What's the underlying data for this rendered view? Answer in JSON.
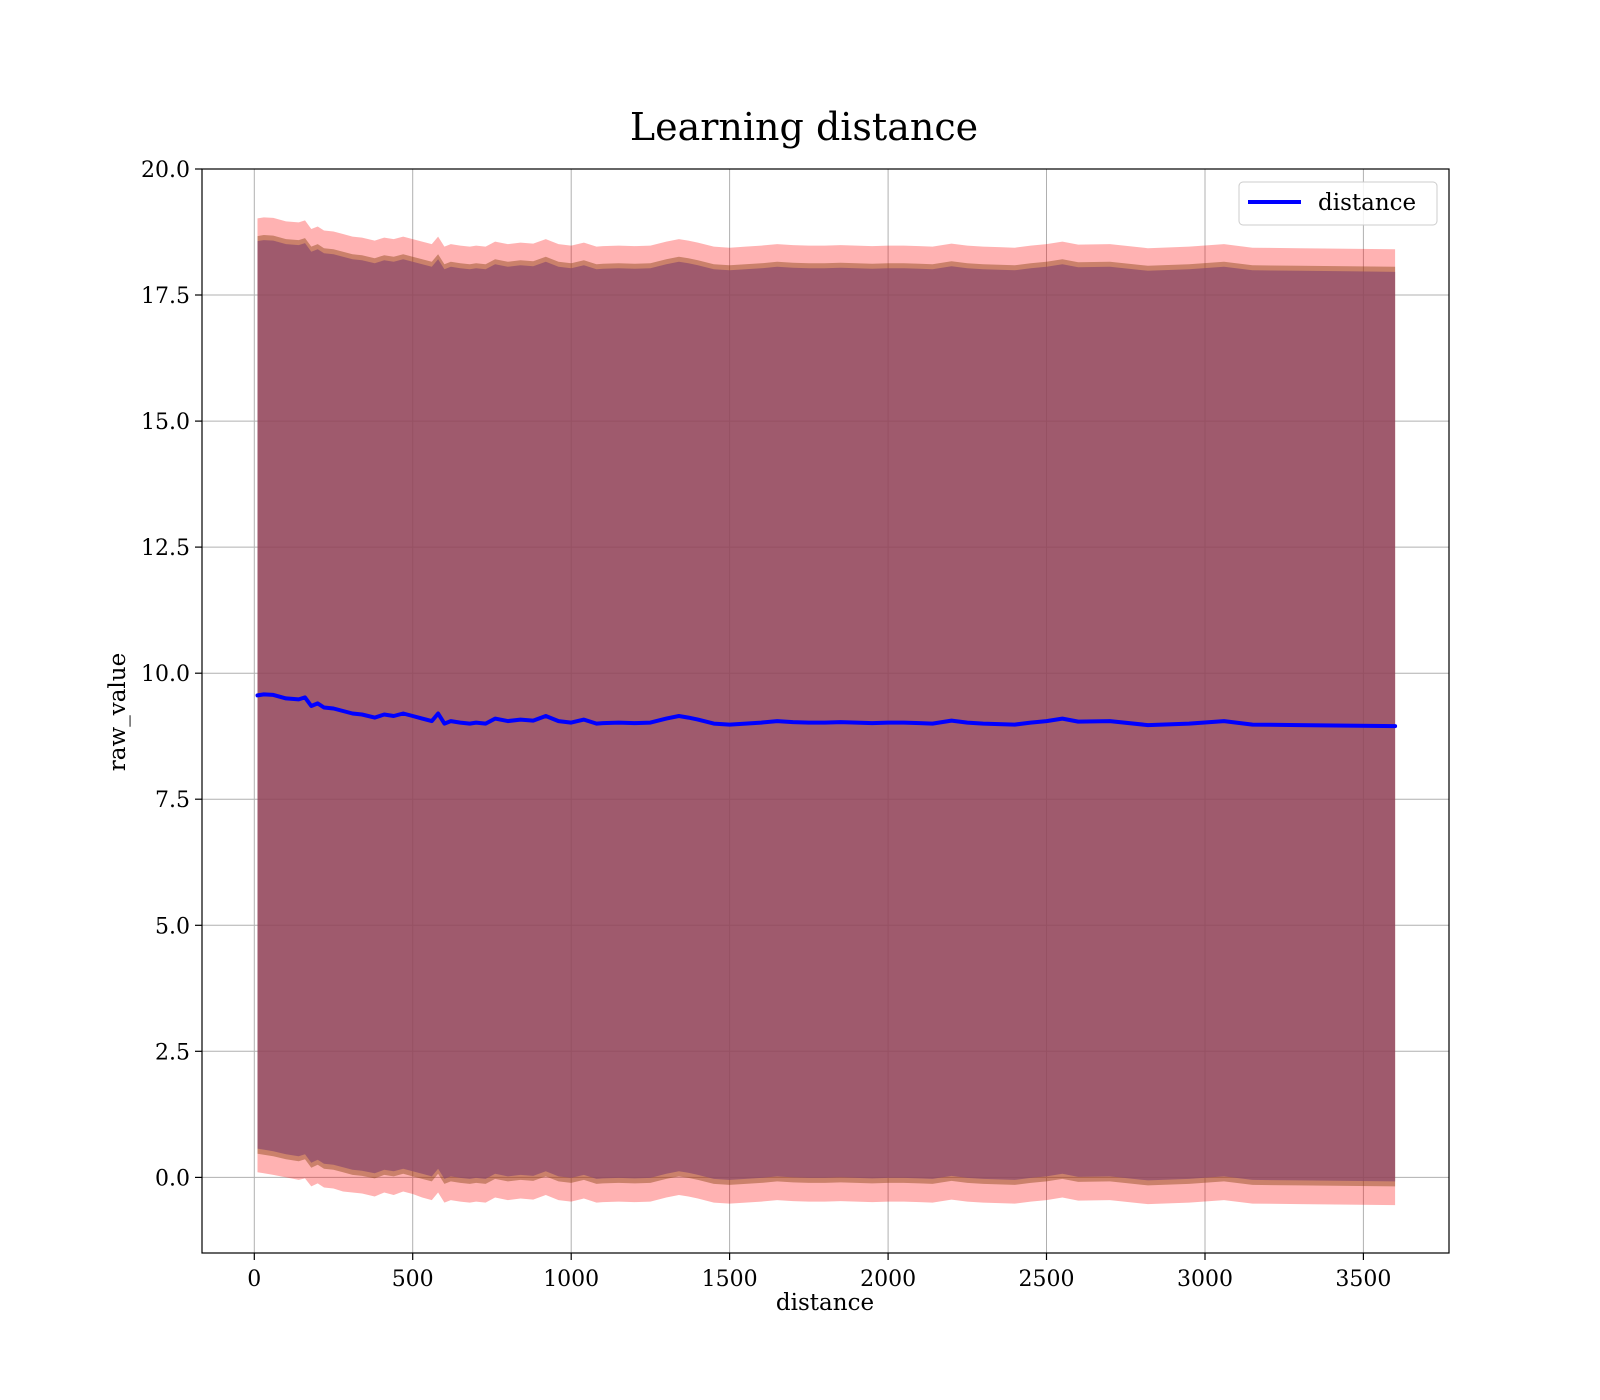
{
  "chart_data": {
    "type": "line",
    "title": "Learning distance",
    "xlabel": "distance",
    "ylabel": "raw_value",
    "xlim": [
      -165,
      3770
    ],
    "ylim": [
      -1.5,
      20
    ],
    "grid": true,
    "legend_position": "top-right",
    "x_ticks": [
      0,
      500,
      1000,
      1500,
      2000,
      2500,
      3000,
      3500
    ],
    "x_tick_labels": [
      "0",
      "500",
      "1000",
      "1500",
      "2000",
      "2500",
      "3000",
      "3500"
    ],
    "y_ticks": [
      0,
      2.5,
      5,
      7.5,
      10,
      12.5,
      15,
      17.5,
      20
    ],
    "y_tick_labels": [
      "0.0",
      "2.5",
      "5.0",
      "7.5",
      "10.0",
      "12.5",
      "15.0",
      "17.5",
      "20.0"
    ],
    "series": [
      {
        "name": "distance",
        "color": "#0000ff",
        "x": [
          10,
          30,
          60,
          100,
          140,
          160,
          180,
          200,
          220,
          250,
          280,
          310,
          340,
          380,
          410,
          440,
          470,
          500,
          530,
          560,
          580,
          600,
          620,
          650,
          680,
          700,
          730,
          760,
          800,
          840,
          880,
          920,
          960,
          1000,
          1040,
          1080,
          1100,
          1150,
          1200,
          1250,
          1300,
          1340,
          1370,
          1400,
          1450,
          1500,
          1550,
          1600,
          1650,
          1700,
          1750,
          1800,
          1850,
          1900,
          1950,
          2000,
          2050,
          2100,
          2140,
          2200,
          2250,
          2300,
          2350,
          2400,
          2450,
          2500,
          2550,
          2600,
          2700,
          2820,
          2950,
          3060,
          3150,
          3300,
          3450,
          3600
        ],
        "y": [
          9.56,
          9.58,
          9.57,
          9.5,
          9.48,
          9.52,
          9.35,
          9.4,
          9.32,
          9.3,
          9.25,
          9.2,
          9.18,
          9.12,
          9.18,
          9.15,
          9.2,
          9.15,
          9.1,
          9.05,
          9.2,
          9.0,
          9.05,
          9.02,
          9.0,
          9.02,
          9.0,
          9.1,
          9.05,
          9.08,
          9.06,
          9.15,
          9.05,
          9.02,
          9.08,
          9.0,
          9.01,
          9.02,
          9.01,
          9.02,
          9.1,
          9.15,
          9.12,
          9.08,
          9.0,
          8.98,
          9.0,
          9.02,
          9.05,
          9.03,
          9.02,
          9.02,
          9.03,
          9.02,
          9.01,
          9.02,
          9.02,
          9.01,
          9.0,
          9.06,
          9.02,
          9.0,
          8.99,
          8.98,
          9.02,
          9.05,
          9.1,
          9.04,
          9.05,
          8.97,
          9.0,
          9.05,
          8.98,
          8.97,
          8.96,
          8.95
        ]
      }
    ],
    "bands": [
      {
        "color": "#ff0000",
        "opacity": 0.3,
        "lower": [
          0.1,
          0.08,
          0.05,
          0.0,
          -0.05,
          -0.02,
          -0.18,
          -0.12,
          -0.2,
          -0.22,
          -0.28,
          -0.3,
          -0.32,
          -0.38,
          -0.3,
          -0.35,
          -0.28,
          -0.33,
          -0.4,
          -0.45,
          -0.3,
          -0.5,
          -0.45,
          -0.48,
          -0.5,
          -0.48,
          -0.5,
          -0.4,
          -0.45,
          -0.42,
          -0.44,
          -0.35,
          -0.45,
          -0.48,
          -0.42,
          -0.5,
          -0.49,
          -0.48,
          -0.49,
          -0.48,
          -0.4,
          -0.35,
          -0.38,
          -0.42,
          -0.5,
          -0.52,
          -0.5,
          -0.48,
          -0.45,
          -0.47,
          -0.48,
          -0.48,
          -0.47,
          -0.48,
          -0.49,
          -0.48,
          -0.48,
          -0.49,
          -0.5,
          -0.44,
          -0.48,
          -0.5,
          -0.51,
          -0.52,
          -0.48,
          -0.45,
          -0.4,
          -0.46,
          -0.45,
          -0.53,
          -0.5,
          -0.45,
          -0.52,
          -0.53,
          -0.54,
          -0.55
        ],
        "upper": [
          19.02,
          19.04,
          19.03,
          18.96,
          18.94,
          18.98,
          18.81,
          18.86,
          18.78,
          18.76,
          18.71,
          18.66,
          18.64,
          18.58,
          18.64,
          18.61,
          18.66,
          18.61,
          18.56,
          18.51,
          18.66,
          18.46,
          18.51,
          18.48,
          18.46,
          18.48,
          18.46,
          18.56,
          18.51,
          18.54,
          18.52,
          18.61,
          18.51,
          18.48,
          18.54,
          18.46,
          18.47,
          18.48,
          18.47,
          18.48,
          18.56,
          18.61,
          18.58,
          18.54,
          18.46,
          18.44,
          18.46,
          18.48,
          18.51,
          18.49,
          18.48,
          18.48,
          18.49,
          18.48,
          18.47,
          18.48,
          18.48,
          18.47,
          18.46,
          18.52,
          18.48,
          18.46,
          18.45,
          18.44,
          18.48,
          18.51,
          18.56,
          18.5,
          18.51,
          18.43,
          18.46,
          18.51,
          18.44,
          18.43,
          18.42,
          18.41
        ]
      },
      {
        "color": "#8b4513",
        "opacity": 0.45,
        "lower": [
          0.47,
          0.45,
          0.42,
          0.36,
          0.32,
          0.36,
          0.19,
          0.25,
          0.17,
          0.15,
          0.1,
          0.05,
          0.03,
          -0.02,
          0.05,
          0.02,
          0.07,
          0.02,
          -0.03,
          -0.08,
          0.07,
          -0.13,
          -0.08,
          -0.11,
          -0.13,
          -0.11,
          -0.13,
          -0.03,
          -0.08,
          -0.05,
          -0.07,
          0.02,
          -0.08,
          -0.11,
          -0.05,
          -0.13,
          -0.12,
          -0.11,
          -0.12,
          -0.11,
          -0.03,
          0.02,
          -0.01,
          -0.05,
          -0.13,
          -0.15,
          -0.13,
          -0.11,
          -0.08,
          -0.1,
          -0.11,
          -0.11,
          -0.1,
          -0.11,
          -0.12,
          -0.11,
          -0.11,
          -0.12,
          -0.13,
          -0.07,
          -0.11,
          -0.13,
          -0.14,
          -0.15,
          -0.11,
          -0.08,
          -0.03,
          -0.09,
          -0.08,
          -0.16,
          -0.13,
          -0.08,
          -0.15,
          -0.16,
          -0.17,
          -0.18
        ],
        "upper": [
          18.67,
          18.69,
          18.68,
          18.61,
          18.59,
          18.63,
          18.46,
          18.51,
          18.43,
          18.41,
          18.36,
          18.31,
          18.29,
          18.23,
          18.29,
          18.26,
          18.31,
          18.26,
          18.21,
          18.16,
          18.31,
          18.11,
          18.16,
          18.13,
          18.11,
          18.13,
          18.11,
          18.21,
          18.16,
          18.19,
          18.17,
          18.26,
          18.16,
          18.13,
          18.19,
          18.11,
          18.12,
          18.13,
          18.12,
          18.13,
          18.21,
          18.26,
          18.23,
          18.19,
          18.11,
          18.09,
          18.11,
          18.13,
          18.16,
          18.14,
          18.13,
          18.13,
          18.14,
          18.13,
          18.12,
          18.13,
          18.13,
          18.12,
          18.11,
          18.17,
          18.13,
          18.11,
          18.1,
          18.09,
          18.13,
          18.16,
          18.21,
          18.15,
          18.16,
          18.08,
          18.11,
          18.16,
          18.09,
          18.08,
          18.07,
          18.06
        ]
      },
      {
        "color": "#8b4a6e",
        "opacity": 0.7,
        "lower": [
          0.57,
          0.55,
          0.52,
          0.46,
          0.42,
          0.46,
          0.29,
          0.35,
          0.27,
          0.25,
          0.2,
          0.15,
          0.13,
          0.08,
          0.15,
          0.12,
          0.17,
          0.12,
          0.07,
          0.02,
          0.17,
          -0.03,
          0.02,
          -0.01,
          -0.03,
          -0.01,
          -0.03,
          0.07,
          0.02,
          0.05,
          0.03,
          0.12,
          0.02,
          -0.01,
          0.05,
          -0.03,
          -0.02,
          -0.01,
          -0.02,
          -0.01,
          0.07,
          0.12,
          0.09,
          0.05,
          -0.03,
          -0.05,
          -0.03,
          -0.01,
          0.02,
          0.0,
          -0.01,
          -0.01,
          0.0,
          -0.01,
          -0.02,
          -0.01,
          -0.01,
          -0.02,
          -0.03,
          0.03,
          -0.01,
          -0.03,
          -0.04,
          -0.05,
          -0.01,
          0.02,
          0.07,
          0.01,
          0.02,
          -0.06,
          -0.03,
          0.02,
          -0.05,
          -0.06,
          -0.07,
          -0.08
        ],
        "upper": [
          18.57,
          18.59,
          18.58,
          18.51,
          18.49,
          18.53,
          18.36,
          18.41,
          18.33,
          18.31,
          18.26,
          18.21,
          18.19,
          18.13,
          18.19,
          18.16,
          18.21,
          18.16,
          18.11,
          18.06,
          18.21,
          18.01,
          18.06,
          18.03,
          18.01,
          18.03,
          18.01,
          18.11,
          18.06,
          18.09,
          18.07,
          18.16,
          18.06,
          18.03,
          18.09,
          18.01,
          18.02,
          18.03,
          18.02,
          18.03,
          18.11,
          18.16,
          18.13,
          18.09,
          18.01,
          17.99,
          18.01,
          18.03,
          18.06,
          18.04,
          18.03,
          18.03,
          18.04,
          18.03,
          18.02,
          18.03,
          18.03,
          18.02,
          18.01,
          18.07,
          18.03,
          18.01,
          18.0,
          17.99,
          18.03,
          18.06,
          18.11,
          18.05,
          18.06,
          17.98,
          18.01,
          18.06,
          17.99,
          17.98,
          17.97,
          17.96
        ]
      }
    ]
  }
}
